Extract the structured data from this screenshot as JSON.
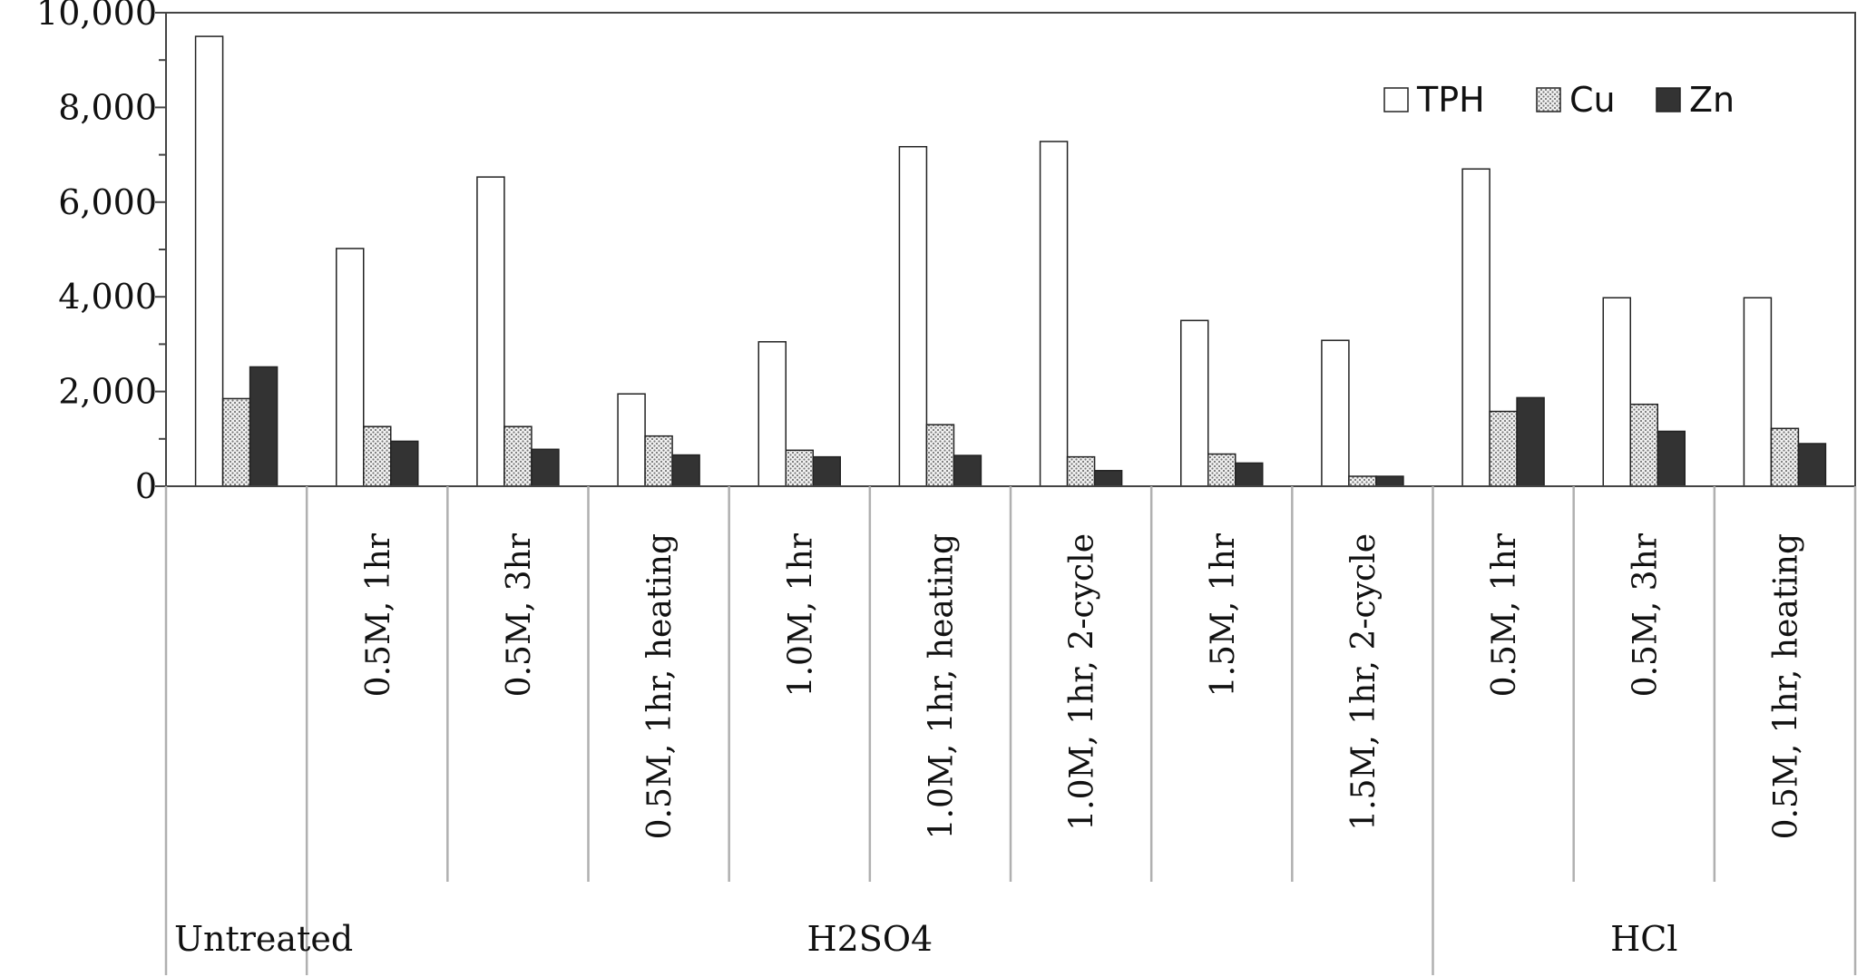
{
  "chart_data": {
    "type": "bar",
    "categories": [
      "",
      "0.5M, 1hr",
      "0.5M, 3hr",
      "0.5M, 1hr, heating",
      "1.0M, 1hr",
      "1.0M, 1hr, heating",
      "1.0M, 1hr, 2-cycle",
      "1.5M, 1hr",
      "1.5M, 1hr, 2-cycle",
      "0.5M, 1hr",
      "0.5M, 3hr",
      "0.5M, 1hr, heating"
    ],
    "groups": [
      {
        "label": "Untreated",
        "span": [
          0,
          0
        ]
      },
      {
        "label": "H2SO4",
        "span": [
          1,
          8
        ]
      },
      {
        "label": "HCl",
        "span": [
          9,
          11
        ]
      }
    ],
    "series": [
      {
        "name": "TPH",
        "color": "#ffffff",
        "pattern": "none",
        "values": [
          9500,
          5020,
          6530,
          1950,
          3050,
          7170,
          7280,
          3500,
          3080,
          6700,
          3980,
          3980
        ]
      },
      {
        "name": "Cu",
        "color": "#d8d8d8",
        "pattern": "dots",
        "values": [
          1850,
          1260,
          1260,
          1060,
          760,
          1300,
          620,
          680,
          210,
          1580,
          1730,
          1220
        ]
      },
      {
        "name": "Zn",
        "color": "#333333",
        "pattern": "none",
        "values": [
          2520,
          950,
          780,
          660,
          620,
          650,
          330,
          490,
          210,
          1870,
          1160,
          900
        ]
      }
    ],
    "y_ticks": [
      "0",
      "2,000",
      "4,000",
      "6,000",
      "8,000",
      "10,000"
    ],
    "ylim": [
      0,
      10000
    ],
    "legend_position": "top-right",
    "grid": false
  }
}
